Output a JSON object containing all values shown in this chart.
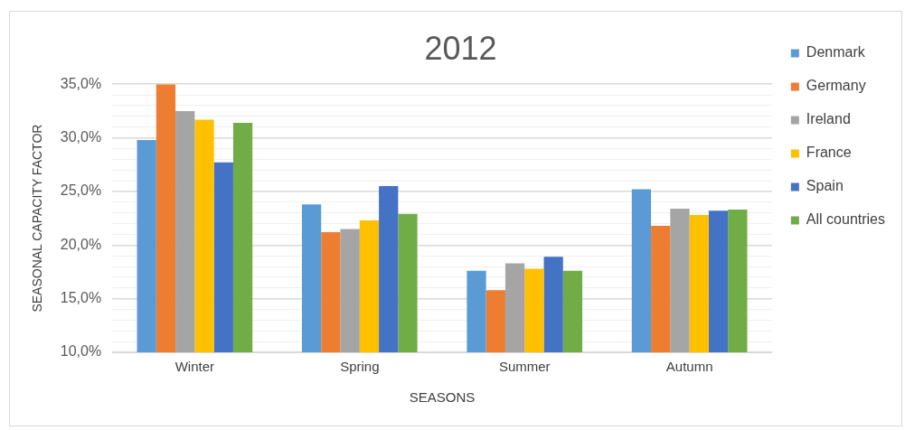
{
  "chart_data": {
    "type": "bar",
    "title": "2012",
    "xlabel": "SEASONS",
    "ylabel": "SEASONAL CAPACITY FACTOR",
    "categories": [
      "Winter",
      "Spring",
      "Summer",
      "Autumn"
    ],
    "series": [
      {
        "name": "Denmark",
        "color": "#5b9bd5",
        "values": [
          29.8,
          23.8,
          17.6,
          25.2
        ]
      },
      {
        "name": "Germany",
        "color": "#ed7d31",
        "values": [
          35.0,
          21.2,
          15.8,
          21.8
        ]
      },
      {
        "name": "Ireland",
        "color": "#a5a5a5",
        "values": [
          32.5,
          21.5,
          18.3,
          23.4
        ]
      },
      {
        "name": "France",
        "color": "#ffc000",
        "values": [
          31.7,
          22.3,
          17.8,
          22.8
        ]
      },
      {
        "name": "Spain",
        "color": "#4472c4",
        "values": [
          27.7,
          25.5,
          18.9,
          23.2
        ]
      },
      {
        "name": "All countries",
        "color": "#70ad47",
        "values": [
          31.4,
          22.9,
          17.6,
          23.3
        ]
      }
    ],
    "ylim": [
      10,
      35
    ],
    "yticks": [
      {
        "value": 10,
        "label": "10,0%"
      },
      {
        "value": 11,
        "label": null
      },
      {
        "value": 12,
        "label": null
      },
      {
        "value": 13,
        "label": null
      },
      {
        "value": 14,
        "label": null
      },
      {
        "value": 15,
        "label": "15,0%"
      },
      {
        "value": 16,
        "label": null
      },
      {
        "value": 17,
        "label": null
      },
      {
        "value": 18,
        "label": null
      },
      {
        "value": 19,
        "label": null
      },
      {
        "value": 20,
        "label": "20,0%"
      },
      {
        "value": 21,
        "label": null
      },
      {
        "value": 22,
        "label": null
      },
      {
        "value": 23,
        "label": null
      },
      {
        "value": 24,
        "label": null
      },
      {
        "value": 25,
        "label": "25,0%"
      },
      {
        "value": 26,
        "label": null
      },
      {
        "value": 27,
        "label": null
      },
      {
        "value": 28,
        "label": null
      },
      {
        "value": 29,
        "label": null
      },
      {
        "value": 30,
        "label": "30,0%"
      },
      {
        "value": 31,
        "label": null
      },
      {
        "value": 32,
        "label": null
      },
      {
        "value": 33,
        "label": null
      },
      {
        "value": 34,
        "label": null
      },
      {
        "value": 35,
        "label": "35,0%"
      }
    ],
    "grid": "y",
    "legend": "right"
  }
}
